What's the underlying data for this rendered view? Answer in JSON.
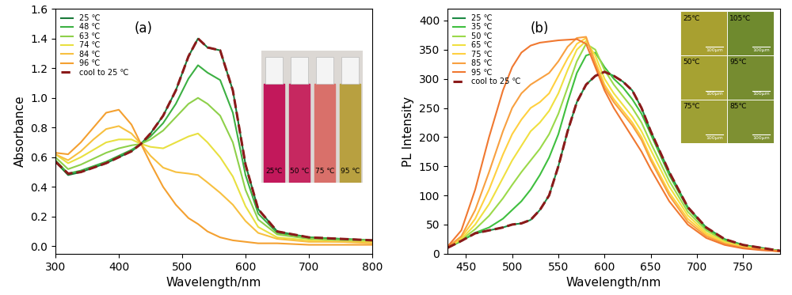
{
  "chart_data": [
    {
      "type": "line",
      "x_label": "Wavelength/nm",
      "y_label": "Absorbance",
      "annotations": [
        "(a)"
      ],
      "xlim": [
        300,
        800
      ],
      "xticks": [
        300,
        400,
        500,
        600,
        700,
        800
      ],
      "ylim": [
        -0.05,
        1.6
      ],
      "yticks": [
        {
          "value": 0,
          "label": "0.0"
        },
        {
          "value": 0.2,
          "label": "0.2"
        },
        {
          "value": 0.4,
          "label": "0.4"
        },
        {
          "value": 0.6,
          "label": "0.6"
        },
        {
          "value": 0.8,
          "label": "0.8"
        },
        {
          "value": 1.0,
          "label": "1.0"
        },
        {
          "value": 1.2,
          "label": "1.2"
        },
        {
          "value": 1.4,
          "label": "1.4"
        },
        {
          "value": 1.6,
          "label": "1.6"
        }
      ],
      "legend": "upper left",
      "x": [
        300,
        320,
        340,
        360,
        380,
        400,
        420,
        435,
        450,
        470,
        490,
        510,
        525,
        540,
        560,
        580,
        600,
        620,
        650,
        700,
        750,
        800
      ],
      "series": [
        {
          "name": "25 ℃",
          "color": "#1a7a3a",
          "line_style": "solid",
          "values": [
            0.57,
            0.48,
            0.5,
            0.53,
            0.56,
            0.6,
            0.64,
            0.69,
            0.76,
            0.88,
            1.05,
            1.28,
            1.4,
            1.34,
            1.32,
            1.05,
            0.55,
            0.25,
            0.1,
            0.06,
            0.05,
            0.04
          ]
        },
        {
          "name": "48 ℃",
          "color": "#3cb043",
          "line_style": "solid",
          "values": [
            0.58,
            0.49,
            0.51,
            0.54,
            0.57,
            0.61,
            0.65,
            0.69,
            0.74,
            0.83,
            0.96,
            1.13,
            1.22,
            1.17,
            1.12,
            0.9,
            0.48,
            0.22,
            0.09,
            0.06,
            0.05,
            0.04
          ]
        },
        {
          "name": "63 ℃",
          "color": "#8ed04a",
          "line_style": "solid",
          "values": [
            0.6,
            0.52,
            0.55,
            0.59,
            0.63,
            0.66,
            0.68,
            0.69,
            0.72,
            0.78,
            0.87,
            0.96,
            1.0,
            0.96,
            0.88,
            0.7,
            0.38,
            0.18,
            0.08,
            0.05,
            0.04,
            0.04
          ]
        },
        {
          "name": "74 ℃",
          "color": "#e8e040",
          "line_style": "solid",
          "values": [
            0.62,
            0.56,
            0.6,
            0.65,
            0.7,
            0.72,
            0.72,
            0.69,
            0.67,
            0.66,
            0.7,
            0.74,
            0.76,
            0.7,
            0.6,
            0.47,
            0.27,
            0.13,
            0.06,
            0.04,
            0.03,
            0.03
          ]
        },
        {
          "name": "84 ℃",
          "color": "#f7c040",
          "line_style": "solid",
          "values": [
            0.62,
            0.58,
            0.64,
            0.72,
            0.79,
            0.81,
            0.76,
            0.69,
            0.61,
            0.53,
            0.5,
            0.49,
            0.48,
            0.43,
            0.36,
            0.28,
            0.17,
            0.09,
            0.05,
            0.03,
            0.03,
            0.02
          ]
        },
        {
          "name": "96 ℃",
          "color": "#f4a030",
          "line_style": "solid",
          "values": [
            0.63,
            0.62,
            0.7,
            0.8,
            0.9,
            0.92,
            0.82,
            0.69,
            0.56,
            0.4,
            0.28,
            0.19,
            0.15,
            0.1,
            0.06,
            0.04,
            0.03,
            0.02,
            0.02,
            0.01,
            0.01,
            0.01
          ]
        },
        {
          "name": "cool to 25 ℃",
          "color": "#8b1a1a",
          "line_style": "dashed",
          "values": [
            0.57,
            0.49,
            0.5,
            0.53,
            0.56,
            0.6,
            0.64,
            0.69,
            0.76,
            0.88,
            1.05,
            1.28,
            1.4,
            1.34,
            1.32,
            1.05,
            0.55,
            0.25,
            0.1,
            0.06,
            0.05,
            0.04
          ]
        }
      ],
      "inset_photos": [
        {
          "text": "25℃",
          "color": "#c2185b"
        },
        {
          "text": "50 ℃",
          "color": "#c62860"
        },
        {
          "text": "75 ℃",
          "color": "#d9706a"
        },
        {
          "text": "95 ℃",
          "color": "#b8a040"
        }
      ]
    },
    {
      "type": "line",
      "x_label": "Wavelength/nm",
      "y_label": "PL Intensity",
      "annotations": [
        "(b)"
      ],
      "xlim": [
        430,
        790
      ],
      "xticks": [
        450,
        500,
        550,
        600,
        650,
        700,
        750
      ],
      "ylim": [
        0,
        420
      ],
      "yticks": [
        0,
        50,
        100,
        150,
        200,
        250,
        300,
        350,
        400
      ],
      "legend": "upper left",
      "x": [
        430,
        445,
        460,
        475,
        490,
        500,
        510,
        520,
        530,
        540,
        550,
        560,
        570,
        580,
        590,
        600,
        610,
        620,
        630,
        640,
        650,
        670,
        690,
        710,
        730,
        750,
        770,
        790
      ],
      "series": [
        {
          "name": "25 ℃",
          "color": "#1d8a45",
          "line_style": "solid",
          "values": [
            10,
            22,
            35,
            40,
            45,
            50,
            52,
            58,
            75,
            100,
            150,
            210,
            260,
            290,
            305,
            312,
            305,
            295,
            280,
            250,
            210,
            140,
            80,
            45,
            25,
            15,
            10,
            5
          ]
        },
        {
          "name": "35 ℃",
          "color": "#3fbf3f",
          "line_style": "solid",
          "values": [
            10,
            22,
            36,
            45,
            60,
            75,
            90,
            110,
            135,
            165,
            205,
            260,
            310,
            340,
            345,
            320,
            300,
            285,
            265,
            240,
            205,
            135,
            78,
            43,
            24,
            14,
            9,
            5
          ]
        },
        {
          "name": "50 ℃",
          "color": "#9bd94a",
          "line_style": "solid",
          "values": [
            10,
            24,
            42,
            65,
            95,
            118,
            140,
            160,
            180,
            205,
            240,
            285,
            330,
            360,
            350,
            315,
            290,
            270,
            250,
            225,
            190,
            125,
            72,
            40,
            22,
            13,
            8,
            5
          ]
        },
        {
          "name": "65 ℃",
          "color": "#f0e040",
          "line_style": "solid",
          "values": [
            10,
            25,
            50,
            85,
            130,
            160,
            185,
            210,
            225,
            245,
            275,
            315,
            350,
            365,
            340,
            300,
            275,
            255,
            235,
            210,
            178,
            115,
            66,
            36,
            20,
            12,
            8,
            4
          ]
        },
        {
          "name": "75 ℃",
          "color": "#ffd040",
          "line_style": "solid",
          "values": [
            11,
            28,
            60,
            110,
            170,
            205,
            230,
            250,
            260,
            275,
            305,
            335,
            360,
            370,
            330,
            290,
            265,
            245,
            225,
            200,
            165,
            105,
            60,
            33,
            18,
            11,
            7,
            4
          ]
        },
        {
          "name": "85 ℃",
          "color": "#f8a040",
          "line_style": "solid",
          "values": [
            11,
            30,
            75,
            140,
            210,
            250,
            275,
            290,
            300,
            310,
            330,
            355,
            370,
            372,
            325,
            285,
            260,
            240,
            220,
            195,
            160,
            100,
            55,
            30,
            17,
            10,
            7,
            4
          ]
        },
        {
          "name": "95 ℃",
          "color": "#f07830",
          "line_style": "solid",
          "values": [
            12,
            40,
            110,
            200,
            280,
            320,
            345,
            357,
            362,
            364,
            366,
            367,
            368,
            360,
            320,
            280,
            250,
            225,
            200,
            175,
            145,
            90,
            50,
            27,
            15,
            9,
            6,
            4
          ]
        },
        {
          "name": "cool to 25 ℃",
          "color": "#8b1a1a",
          "line_style": "dashed",
          "values": [
            10,
            22,
            35,
            40,
            45,
            50,
            52,
            58,
            75,
            100,
            150,
            210,
            260,
            290,
            305,
            312,
            305,
            295,
            280,
            250,
            210,
            140,
            80,
            45,
            25,
            15,
            10,
            5
          ]
        }
      ],
      "inset_photos": [
        {
          "text": "25℃",
          "color": "#a8a030",
          "scale_bar": "100μm"
        },
        {
          "text": "50℃",
          "color": "#a6a232",
          "scale_bar": "100μm"
        },
        {
          "text": "75℃",
          "color": "#9ea034",
          "scale_bar": "100μm"
        },
        {
          "text": "105℃",
          "color": "#6f8a2e",
          "scale_bar": "100μm"
        },
        {
          "text": "95℃",
          "color": "#768c30",
          "scale_bar": "100μm"
        },
        {
          "text": "85℃",
          "color": "#7e9032",
          "scale_bar": "100μm"
        }
      ]
    }
  ]
}
